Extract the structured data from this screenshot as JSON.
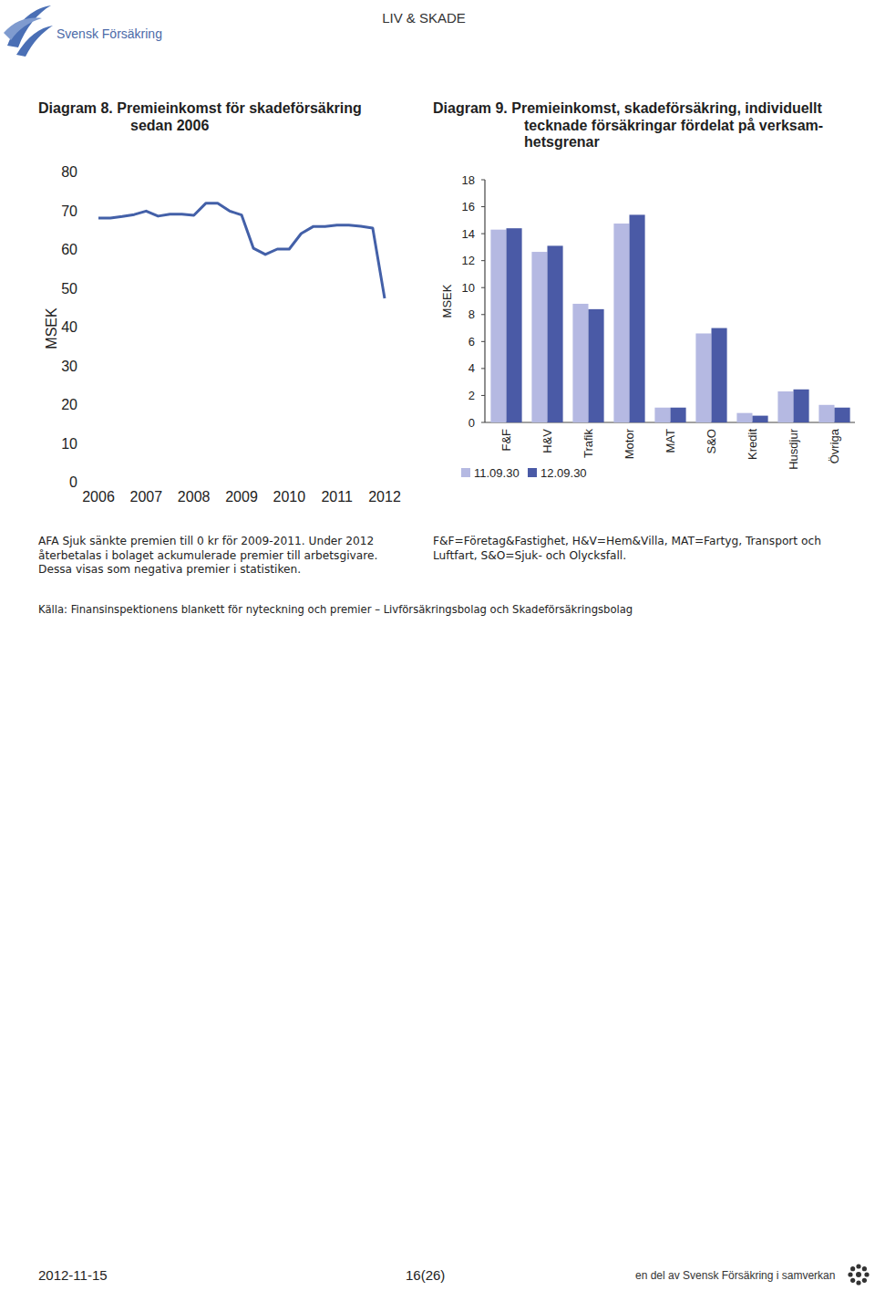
{
  "header": {
    "logo_text": "Svensk Försäkring",
    "section": "LIV & SKADE"
  },
  "chart_data": [
    {
      "type": "line",
      "title": [
        "Diagram 8. Premieinkomst för skadeförsäkring",
        "sedan 2006"
      ],
      "y_label": "MSEK",
      "categories": [
        "2006",
        null,
        null,
        null,
        "2007",
        null,
        null,
        null,
        "2008",
        null,
        null,
        null,
        "2009",
        null,
        null,
        null,
        "2010",
        null,
        null,
        null,
        "2011",
        null,
        null,
        null,
        "2012"
      ],
      "values": [
        68,
        68,
        68.4,
        68.9,
        69.8,
        68.5,
        69,
        69,
        68.7,
        71.8,
        71.8,
        69.8,
        68.8,
        60.2,
        58.6,
        60,
        60,
        64,
        65.8,
        65.8,
        66.2,
        66.2,
        65.9,
        65.4,
        47.3
      ],
      "color": "#4360a8",
      "ylim": [
        0,
        80
      ],
      "yticks": [
        0,
        10,
        20,
        30,
        40,
        50,
        60,
        70,
        80
      ],
      "grid": false,
      "annotation": [
        "AFA Sjuk sänkte premien till 0 kr för 2009-2011. Under 2012",
        "återbetalas i bolaget ackumulerade premier till arbetsgivare.",
        "Dessa visas som negativa premier i statistiken."
      ]
    },
    {
      "type": "bar",
      "title": [
        "Diagram 9. Premieinkomst, skadeförsäkring, individuellt",
        "tecknade försäkringar fördelat på verksam-",
        "hetsgrenar"
      ],
      "y_label": "MSEK",
      "categories": [
        "F&F",
        "H&V",
        "Trafik",
        "Motor",
        "MAT",
        "S&O",
        "Kredit",
        "Husdjur",
        "Övriga"
      ],
      "series": [
        {
          "name": "11.09.30",
          "color": "#b5b9e2",
          "values": [
            14.3,
            12.65,
            8.8,
            14.75,
            1.1,
            6.6,
            0.7,
            2.3,
            1.3
          ]
        },
        {
          "name": "12.09.30",
          "color": "#4a5aa6",
          "values": [
            14.4,
            13.1,
            8.4,
            15.4,
            1.1,
            7.0,
            0.5,
            2.45,
            1.1
          ]
        }
      ],
      "ylim": [
        0,
        18
      ],
      "yticks": [
        0,
        2,
        4,
        6,
        8,
        10,
        12,
        14,
        16,
        18
      ],
      "grid": false,
      "legend": "bottom",
      "annotation": [
        "F&F=Företag&Fastighet, H&V=Hem&Villa, MAT=Fartyg, Transport och",
        "Luftfart, S&O=Sjuk- och Olycksfall."
      ]
    }
  ],
  "footer": {
    "source": "Källa: Finansinspektionens blankett för nyteckning och premier – Livförsäkringsbolag och Skadeförsäkringsbolag",
    "date": "2012-11-15",
    "page": "16(26)",
    "tagline": "en del av Svensk Försäkring i samverkan"
  }
}
